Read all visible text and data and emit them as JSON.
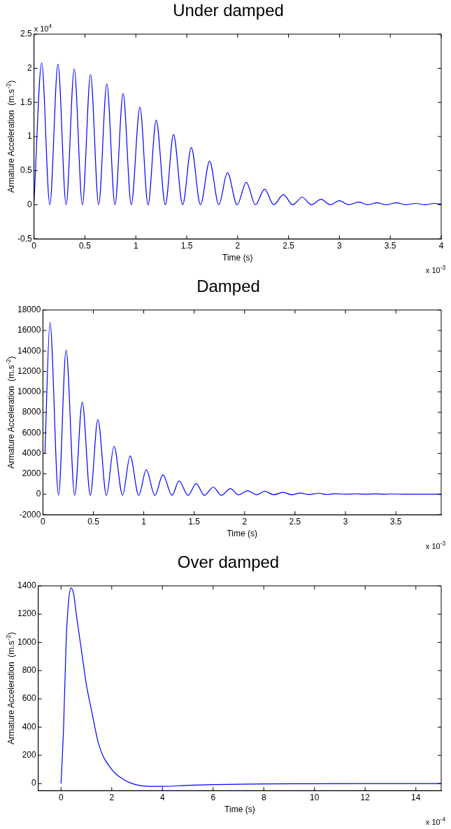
{
  "chart_data": [
    {
      "type": "line",
      "title": "Under damped",
      "xlabel": "Time (s)",
      "ylabel": "Armature Acceleration  (m.s$^{-2}$)",
      "annotations": [
        "x 10$^{4}$",
        "x 10$^{-3}$"
      ],
      "xlim": [
        0,
        4
      ],
      "xticks": [
        0,
        0.5,
        1,
        1.5,
        2,
        2.5,
        3,
        3.5,
        4
      ],
      "ylim": [
        -0.5,
        2.5
      ],
      "yticks": [
        -0.5,
        0,
        0.5,
        1,
        1.5,
        2,
        2.5
      ],
      "marker": "none",
      "line_style": "solid",
      "series": [
        {
          "color": "#0000ff",
          "x": [
            0,
            0.075,
            0.155,
            0.235,
            0.315,
            0.395,
            0.475,
            0.555,
            0.635,
            0.715,
            0.795,
            0.875,
            0.955,
            1.04,
            1.12,
            1.2,
            1.29,
            1.37,
            1.46,
            1.545,
            1.635,
            1.725,
            1.815,
            1.9,
            1.995,
            2.085,
            2.175,
            2.265,
            2.355,
            2.45,
            2.54,
            2.635,
            2.725,
            2.82,
            2.91,
            3.0,
            3.09,
            3.19,
            3.28,
            3.37,
            3.46,
            3.56,
            3.65,
            3.75,
            3.84,
            3.93,
            4.0
          ],
          "values": [
            0.05,
            2.08,
            0,
            2.06,
            0,
            1.99,
            0,
            1.91,
            0,
            1.77,
            0,
            1.63,
            0,
            1.43,
            0,
            1.24,
            0,
            1.03,
            0,
            0.84,
            0,
            0.64,
            0,
            0.47,
            0,
            0.33,
            0,
            0.23,
            0,
            0.15,
            0,
            0.11,
            0,
            0.08,
            0,
            0.06,
            0,
            0.04,
            0,
            0.03,
            0,
            0.03,
            0,
            0.02,
            0,
            0.02,
            0.01
          ]
        }
      ]
    },
    {
      "type": "line",
      "title": "Damped",
      "xlabel": "Time (s)",
      "ylabel": "Armature Acceleration  (m.s$^{-2}$)",
      "annotations": [
        "x 10$^{-3}$"
      ],
      "xlim": [
        0,
        3.95
      ],
      "xticks": [
        0,
        0.5,
        1,
        1.5,
        2,
        2.5,
        3,
        3.5
      ],
      "ylim": [
        -2000,
        18000
      ],
      "yticks": [
        -2000,
        0,
        2000,
        4000,
        6000,
        8000,
        10000,
        12000,
        14000,
        16000,
        18000
      ],
      "marker": "none",
      "line_style": "solid",
      "series": [
        {
          "color": "#0000ff",
          "x": [
            0.02,
            0.07,
            0.155,
            0.23,
            0.315,
            0.39,
            0.47,
            0.545,
            0.63,
            0.705,
            0.79,
            0.865,
            0.95,
            1.025,
            1.11,
            1.19,
            1.28,
            1.35,
            1.44,
            1.52,
            1.6,
            1.69,
            1.77,
            1.86,
            1.94,
            2.03,
            2.12,
            2.2,
            2.29,
            2.38,
            2.47,
            2.55,
            2.64,
            2.73,
            2.82,
            2.9,
            3.0,
            3.1,
            3.2,
            3.3,
            3.4,
            3.45,
            3.6,
            3.95
          ],
          "values": [
            4000,
            16800,
            -100,
            14100,
            -100,
            9000,
            -100,
            7300,
            -100,
            4700,
            -100,
            3750,
            -100,
            2400,
            -100,
            1900,
            -100,
            1300,
            -100,
            1050,
            -100,
            700,
            -100,
            550,
            -50,
            350,
            -50,
            300,
            -50,
            200,
            -50,
            130,
            -30,
            100,
            -20,
            60,
            0,
            50,
            0,
            40,
            0,
            30,
            0,
            0
          ]
        }
      ]
    },
    {
      "type": "line",
      "title": "Over damped",
      "xlabel": "Time (s)",
      "ylabel": "Armature Acceleration  (m.s$^{-2}$)",
      "annotations": [
        "x 10$^{-4}$"
      ],
      "xlim": [
        -0.9,
        15
      ],
      "xticks": [
        0,
        2,
        4,
        6,
        8,
        10,
        12,
        14
      ],
      "ylim": [
        -50,
        1400
      ],
      "yticks": [
        0,
        200,
        400,
        600,
        800,
        1000,
        1200,
        1400
      ],
      "marker": "none",
      "line_style": "solid",
      "series": [
        {
          "color": "#0000ff",
          "x": [
            0,
            0.1,
            0.2,
            0.3,
            0.4,
            0.5,
            0.6,
            0.8,
            1.0,
            1.2,
            1.5,
            2,
            2.5,
            3,
            3.5,
            4,
            5,
            6,
            8,
            10,
            15
          ],
          "values": [
            0,
            400,
            1000,
            1300,
            1385,
            1340,
            1200,
            950,
            700,
            520,
            270,
            100,
            25,
            -10,
            -20,
            -20,
            -12,
            -7,
            -3,
            -1,
            0
          ]
        }
      ]
    }
  ]
}
